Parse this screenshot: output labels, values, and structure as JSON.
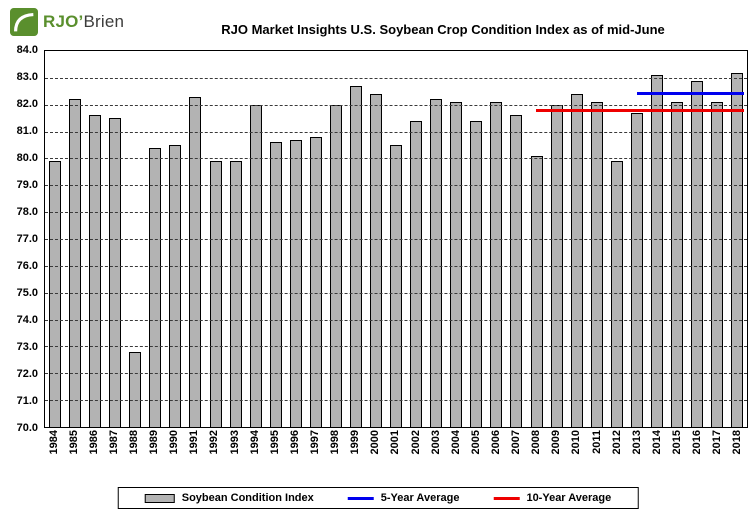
{
  "header": {
    "logo_primary": "RJO’",
    "logo_secondary": "Brien"
  },
  "chart_data": {
    "type": "bar",
    "title": "RJO Market Insights U.S. Soybean Crop Condition Index as of mid-June",
    "xlabel": "",
    "ylabel": "",
    "categories": [
      "1984",
      "1985",
      "1986",
      "1987",
      "1988",
      "1989",
      "1990",
      "1991",
      "1992",
      "1993",
      "1994",
      "1995",
      "1996",
      "1997",
      "1998",
      "1999",
      "2000",
      "2001",
      "2002",
      "2003",
      "2004",
      "2005",
      "2006",
      "2007",
      "2008",
      "2009",
      "2010",
      "2011",
      "2012",
      "2013",
      "2014",
      "2015",
      "2016",
      "2017",
      "2018"
    ],
    "values": [
      79.9,
      82.2,
      81.6,
      81.5,
      72.8,
      80.4,
      80.5,
      82.3,
      79.9,
      79.9,
      82.0,
      80.6,
      80.7,
      80.8,
      82.0,
      82.7,
      82.4,
      80.5,
      81.4,
      82.2,
      82.1,
      81.4,
      82.1,
      81.6,
      80.1,
      82.0,
      82.4,
      82.1,
      79.9,
      81.7,
      83.1,
      82.1,
      82.9,
      82.1,
      83.2
    ],
    "ylim": [
      70.0,
      84.0
    ],
    "ytick_step": 1.0,
    "yticks": [
      "84.0",
      "83.0",
      "82.0",
      "81.0",
      "80.0",
      "79.0",
      "78.0",
      "77.0",
      "76.0",
      "75.0",
      "74.0",
      "73.0",
      "72.0",
      "71.0",
      "70.0"
    ],
    "grid": "horizontal-dashed",
    "bar_color": "#b3b3b3",
    "bar_border_color": "#000000",
    "lines": [
      {
        "name": "five-year-average-line",
        "label": "5-Year Average",
        "value": 82.4,
        "from_year": "2013",
        "to_year": "2018",
        "color": "#0000ee"
      },
      {
        "name": "ten-year-average-line",
        "label": "10-Year Average",
        "value": 81.8,
        "from_year": "2008",
        "to_year": "2018",
        "color": "#ee0000"
      }
    ],
    "legend_position": "bottom"
  },
  "legend": {
    "items": [
      {
        "label": "Soybean Condition Index",
        "swatch": "bar",
        "color": "#b3b3b3"
      },
      {
        "label": "5-Year Average",
        "swatch": "line",
        "color": "#0000ee"
      },
      {
        "label": "10-Year Average",
        "swatch": "line",
        "color": "#ee0000"
      }
    ]
  },
  "brand": {
    "logo_green": "#5a8f2d"
  }
}
